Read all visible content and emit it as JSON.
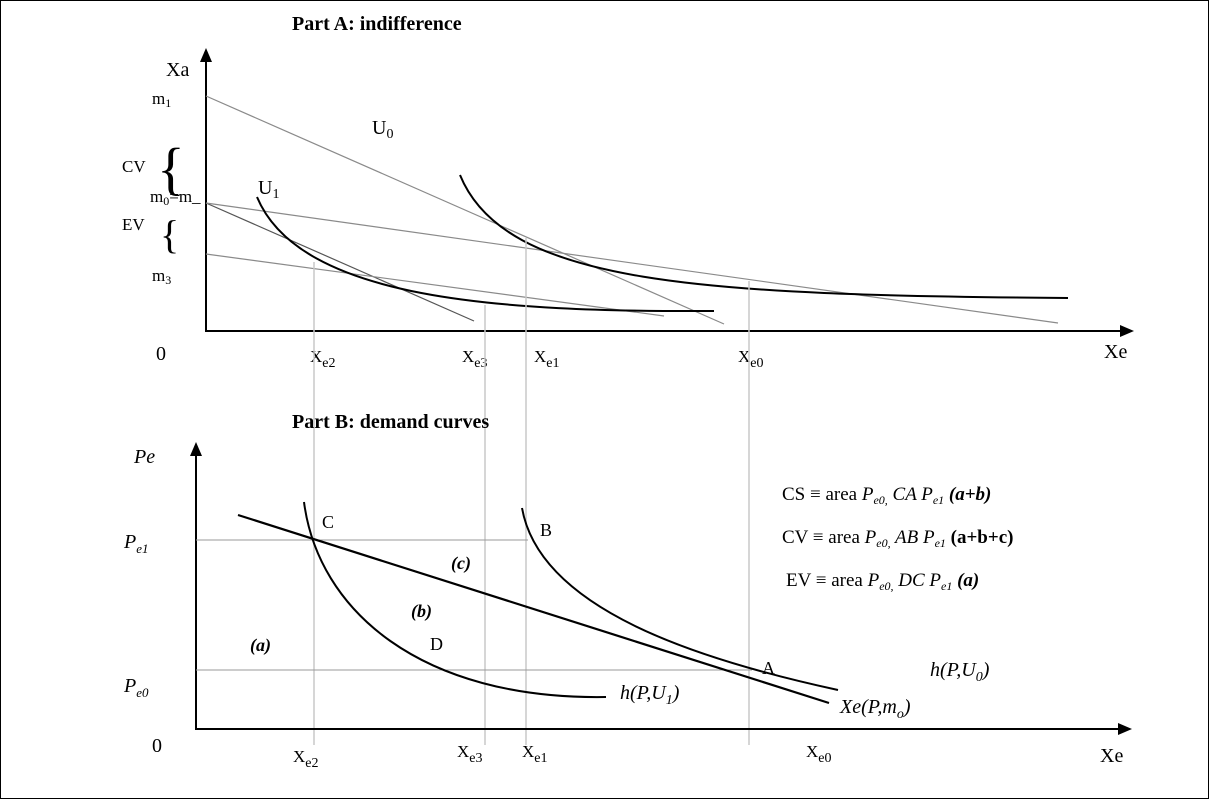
{
  "partA": {
    "title": "Part A: indifference",
    "y_axis_label": "Xa",
    "x_axis_label": "Xe",
    "origin": "0",
    "y_ticks": {
      "m1": "m",
      "m1_sub": "1",
      "m0": "m",
      "m0_sub": "0",
      "m0_rest": "=m_",
      "m3": "m",
      "m3_sub": "3"
    },
    "brace_labels": {
      "cv": "CV",
      "ev": "EV"
    },
    "curve_labels": {
      "u0": "U",
      "u0_sub": "0",
      "u1": "U",
      "u1_sub": "1"
    },
    "x_ticks": [
      {
        "main": "X",
        "sub": "e2"
      },
      {
        "main": "X",
        "sub": "e3"
      },
      {
        "main": "X",
        "sub": "e1"
      },
      {
        "main": "X",
        "sub": "e0"
      }
    ]
  },
  "partB": {
    "title": "Part B: demand curves",
    "y_axis_label": "Pe",
    "x_axis_label": "Xe",
    "origin": "0",
    "y_ticks": {
      "pe1": "P",
      "pe1_sub": "e1",
      "pe0": "P",
      "pe0_sub": "e0"
    },
    "points": {
      "a": "A",
      "b": "B",
      "c": "C",
      "d": "D"
    },
    "areas": {
      "a": "(a)",
      "b": "(b)",
      "c": "(c)"
    },
    "function_labels": {
      "h_u1": "h(P,U",
      "h_u1_sub": "1",
      "h_u1_close": ")",
      "h_u0": "h(P,U",
      "h_u0_sub": "0",
      "h_u0_close": ")",
      "xe": "Xe(P,m",
      "xe_sub": "o",
      "xe_close": ")"
    },
    "x_ticks": [
      {
        "main": "X",
        "sub": "e2"
      },
      {
        "main": "X",
        "sub": "e3"
      },
      {
        "main": "X",
        "sub": "e1"
      },
      {
        "main": "X",
        "sub": "e0"
      }
    ],
    "legend": {
      "cs": {
        "lhs": "CS ≡ area ",
        "p0": "P",
        "p0_sub": "e0,",
        "mid": " CA ",
        "p1": "P",
        "p1_sub": "e1",
        "tail": " (a+b)"
      },
      "cv": {
        "lhs": "CV ≡ area ",
        "p0": "P",
        "p0_sub": "e0,",
        "mid": " AB ",
        "p1": "P",
        "p1_sub": "e1",
        "tail": " (a+b+c)"
      },
      "ev": {
        "lhs": "EV ≡ area ",
        "p0": "P",
        "p0_sub": "e0,",
        "mid": " DC ",
        "p1": "P",
        "p1_sub": "e1",
        "tail": " (a)"
      }
    }
  }
}
